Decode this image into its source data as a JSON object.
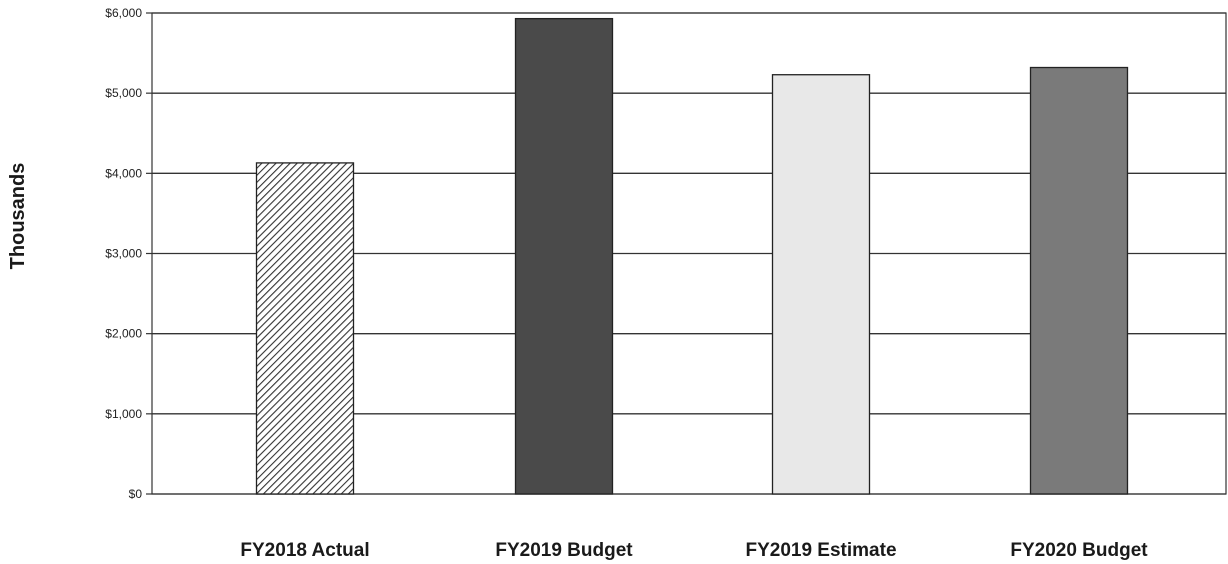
{
  "chart_data": {
    "type": "bar",
    "title": "",
    "xlabel": "",
    "ylabel": "Thousands",
    "categories": [
      "FY2018 Actual",
      "FY2019 Budget",
      "FY2019 Estimate",
      "FY2020 Budget"
    ],
    "values": [
      4130,
      5930,
      5230,
      5320
    ],
    "ylim": [
      0,
      6000
    ],
    "yticks": [
      0,
      1000,
      2000,
      3000,
      4000,
      5000,
      6000
    ],
    "ytick_labels": [
      "$0",
      "$1,000",
      "$2,000",
      "$3,000",
      "$4,000",
      "$5,000",
      "$6,000"
    ],
    "bar_fills": [
      "hatch",
      "#4a4a4a",
      "#e8e8e8",
      "#7a7a7a"
    ],
    "grid": true,
    "legend": "none"
  }
}
